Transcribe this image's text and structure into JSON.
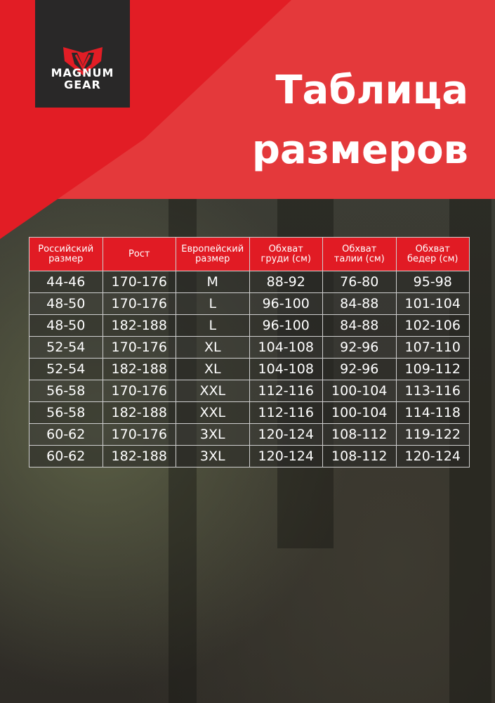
{
  "brand": {
    "logo_text_line1": "MAGNUM",
    "logo_text_line2": "GEAR",
    "colors": {
      "red": "#e21d25",
      "dark": "#292828"
    }
  },
  "title": {
    "line1": "Таблица",
    "line2": "размеров"
  },
  "table": {
    "headers": [
      [
        "Российский",
        "размер"
      ],
      [
        "Рост",
        ""
      ],
      [
        "Европейский",
        "размер"
      ],
      [
        "Обхват",
        "груди (см)"
      ],
      [
        "Обхват",
        "талии (см)"
      ],
      [
        "Обхват",
        "бедер (см)"
      ]
    ],
    "rows": [
      [
        "44-46",
        "170-176",
        "M",
        "88-92",
        "76-80",
        "95-98"
      ],
      [
        "48-50",
        "170-176",
        "L",
        "96-100",
        "84-88",
        "101-104"
      ],
      [
        "48-50",
        "182-188",
        "L",
        "96-100",
        "84-88",
        "102-106"
      ],
      [
        "52-54",
        "170-176",
        "XL",
        "104-108",
        "92-96",
        "107-110"
      ],
      [
        "52-54",
        "182-188",
        "XL",
        "104-108",
        "92-96",
        "109-112"
      ],
      [
        "56-58",
        "170-176",
        "XXL",
        "112-116",
        "100-104",
        "113-116"
      ],
      [
        "56-58",
        "182-188",
        "XXL",
        "112-116",
        "100-104",
        "114-118"
      ],
      [
        "60-62",
        "170-176",
        "3XL",
        "120-124",
        "108-112",
        "119-122"
      ],
      [
        "60-62",
        "182-188",
        "3XL",
        "120-124",
        "108-112",
        "120-124"
      ]
    ]
  }
}
